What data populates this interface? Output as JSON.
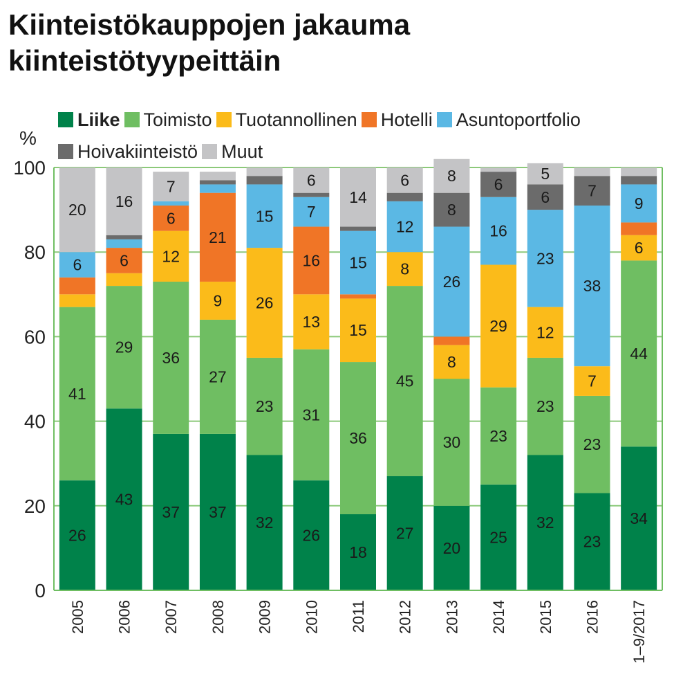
{
  "title": [
    "Kiinteistökauppojen jakauma",
    "kiinteistötyypeittäin"
  ],
  "chart_data": {
    "type": "bar",
    "stacked": true,
    "ylabel": "%",
    "ylim": [
      0,
      100
    ],
    "yticks": [
      0,
      20,
      40,
      60,
      80,
      100
    ],
    "grid": true,
    "legend_position": "top",
    "categories": [
      "2005",
      "2006",
      "2007",
      "2008",
      "2009",
      "2010",
      "2011",
      "2012",
      "2013",
      "2014",
      "2015",
      "2016",
      "1–9/2017"
    ],
    "series": [
      {
        "name": "Liike",
        "color": "#00824a",
        "bold": true,
        "values": [
          26,
          43,
          37,
          37,
          32,
          26,
          18,
          27,
          20,
          25,
          32,
          23,
          34
        ],
        "labels": [
          "26",
          "43",
          "37",
          "37",
          "32",
          "26",
          "18",
          "27",
          "20",
          "25",
          "32",
          "23",
          "34"
        ]
      },
      {
        "name": "Toimisto",
        "color": "#6fbe62",
        "values": [
          41,
          29,
          36,
          27,
          23,
          31,
          36,
          45,
          30,
          23,
          23,
          23,
          44
        ],
        "labels": [
          "41",
          "29",
          "36",
          "27",
          "23",
          "31",
          "36",
          "45",
          "30",
          "23",
          "23",
          "23",
          "44"
        ]
      },
      {
        "name": "Tuotannollinen",
        "color": "#fbbb1a",
        "values": [
          3,
          3,
          12,
          9,
          26,
          13,
          15,
          8,
          8,
          29,
          12,
          7,
          6
        ],
        "labels": [
          "",
          "",
          "12",
          "9",
          "26",
          "13",
          "15",
          "8",
          "8",
          "29",
          "12",
          "7",
          "6"
        ]
      },
      {
        "name": "Hotelli",
        "color": "#f07526",
        "values": [
          4,
          6,
          6,
          21,
          0,
          16,
          1,
          0,
          2,
          0,
          0,
          0,
          3
        ],
        "labels": [
          "",
          "6",
          "6",
          "21",
          "",
          "16",
          "",
          "",
          "",
          "",
          "",
          "",
          ""
        ]
      },
      {
        "name": "Asuntoportfolio",
        "color": "#5bb8e4",
        "values": [
          6,
          2,
          1,
          2,
          15,
          7,
          15,
          12,
          26,
          16,
          23,
          38,
          9
        ],
        "labels": [
          "6",
          "",
          "",
          "",
          "15",
          "7",
          "15",
          "12",
          "26",
          "16",
          "23",
          "38",
          "9"
        ]
      },
      {
        "name": "Hoivakiinteistö",
        "color": "#6b6b6b",
        "values": [
          0,
          1,
          0,
          1,
          2,
          1,
          1,
          2,
          8,
          6,
          6,
          7,
          2
        ],
        "labels": [
          "",
          "",
          "",
          "",
          "",
          "",
          "",
          "",
          "8",
          "6",
          "6",
          "7",
          ""
        ]
      },
      {
        "name": "Muut",
        "color": "#c4c4c6",
        "values": [
          20,
          16,
          7,
          2,
          2,
          6,
          14,
          6,
          8,
          1,
          5,
          2,
          2
        ],
        "labels": [
          "20",
          "16",
          "7",
          "",
          "",
          "6",
          "14",
          "6",
          "8",
          "",
          "5",
          "",
          ""
        ]
      }
    ],
    "legend": [
      [
        "Liike",
        "Toimisto",
        "Tuotannollinen",
        "Hotelli",
        "Asuntoportfolio"
      ],
      [
        "Hoivakiinteistö",
        "Muut"
      ]
    ]
  },
  "colors": {
    "gridline": "#8cc97a",
    "axis": "#6fbe62"
  }
}
